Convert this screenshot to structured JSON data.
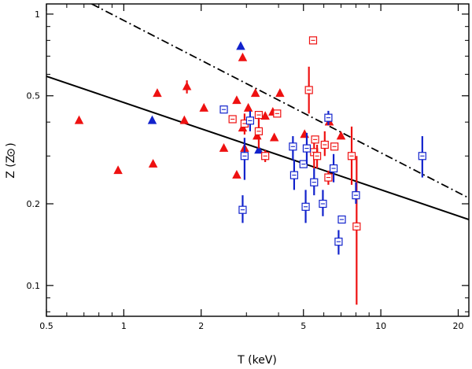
{
  "chart_data": {
    "type": "scatter",
    "title": "",
    "xlabel": "T (keV)",
    "ylabel_prefix": "Z (Z",
    "ylabel_suffix": ")",
    "x_scale": "log",
    "y_scale": "log",
    "xlim": [
      0.5,
      22
    ],
    "ylim": [
      0.077,
      1.09
    ],
    "x_ticks": [
      {
        "value": 0.5,
        "label": "0.5"
      },
      {
        "value": 1,
        "label": "1"
      },
      {
        "value": 2,
        "label": "2"
      },
      {
        "value": 5,
        "label": "5"
      },
      {
        "value": 10,
        "label": "10"
      },
      {
        "value": 20,
        "label": "20"
      }
    ],
    "y_ticks": [
      {
        "value": 0.1,
        "label": "0.1"
      },
      {
        "value": 0.2,
        "label": "0.2"
      },
      {
        "value": 0.5,
        "label": "0.5"
      },
      {
        "value": 1,
        "label": "1"
      }
    ],
    "colors": {
      "red": "#ee1111",
      "blue": "#1122cc",
      "axis": "#000000"
    },
    "lines": [
      {
        "name": "solid-fit",
        "style": "solid",
        "points": [
          [
            0.5,
            0.59
          ],
          [
            22,
            0.175
          ]
        ]
      },
      {
        "name": "dashdot-fit",
        "style": "dashdot",
        "points": [
          [
            0.75,
            1.09
          ],
          [
            22,
            0.21
          ]
        ]
      }
    ],
    "series": [
      {
        "name": "red-triangles",
        "color": "red",
        "marker": "triangle",
        "points": [
          {
            "x": 0.67,
            "y": 0.405
          },
          {
            "x": 0.95,
            "y": 0.265
          },
          {
            "x": 1.3,
            "y": 0.28
          },
          {
            "x": 1.35,
            "y": 0.51
          },
          {
            "x": 1.72,
            "y": 0.405
          },
          {
            "x": 1.76,
            "y": 0.54,
            "ylo": 0.51,
            "yhi": 0.57
          },
          {
            "x": 2.05,
            "y": 0.45
          },
          {
            "x": 2.45,
            "y": 0.32
          },
          {
            "x": 2.75,
            "y": 0.255
          },
          {
            "x": 2.75,
            "y": 0.48
          },
          {
            "x": 2.9,
            "y": 0.69
          },
          {
            "x": 2.9,
            "y": 0.38
          },
          {
            "x": 2.95,
            "y": 0.32
          },
          {
            "x": 3.05,
            "y": 0.45
          },
          {
            "x": 3.25,
            "y": 0.51
          },
          {
            "x": 3.3,
            "y": 0.355
          },
          {
            "x": 3.55,
            "y": 0.42
          },
          {
            "x": 3.8,
            "y": 0.435
          },
          {
            "x": 3.85,
            "y": 0.35
          },
          {
            "x": 4.05,
            "y": 0.51
          },
          {
            "x": 5.05,
            "y": 0.36
          },
          {
            "x": 6.3,
            "y": 0.4
          },
          {
            "x": 7.0,
            "y": 0.355
          }
        ]
      },
      {
        "name": "blue-triangles",
        "color": "blue",
        "marker": "triangle",
        "points": [
          {
            "x": 1.29,
            "y": 0.405
          },
          {
            "x": 2.85,
            "y": 0.76
          },
          {
            "x": 3.35,
            "y": 0.315
          }
        ]
      },
      {
        "name": "red-squares",
        "color": "red",
        "marker": "square",
        "points": [
          {
            "x": 2.65,
            "y": 0.41
          },
          {
            "x": 2.95,
            "y": 0.395,
            "ylo": 0.36,
            "yhi": 0.43
          },
          {
            "x": 3.35,
            "y": 0.425
          },
          {
            "x": 3.35,
            "y": 0.37,
            "ylo": 0.32,
            "yhi": 0.415
          },
          {
            "x": 3.55,
            "y": 0.3,
            "ylo": 0.285,
            "yhi": 0.315
          },
          {
            "x": 3.95,
            "y": 0.43
          },
          {
            "x": 5.25,
            "y": 0.525,
            "ylo": 0.43,
            "yhi": 0.64
          },
          {
            "x": 5.45,
            "y": 0.8
          },
          {
            "x": 5.5,
            "y": 0.31,
            "ylo": 0.27,
            "yhi": 0.35
          },
          {
            "x": 5.55,
            "y": 0.345
          },
          {
            "x": 5.65,
            "y": 0.3,
            "ylo": 0.27,
            "yhi": 0.33
          },
          {
            "x": 6.05,
            "y": 0.33,
            "ylo": 0.3,
            "yhi": 0.37
          },
          {
            "x": 6.25,
            "y": 0.25,
            "ylo": 0.235,
            "yhi": 0.265
          },
          {
            "x": 6.6,
            "y": 0.325
          },
          {
            "x": 7.7,
            "y": 0.3,
            "ylo": 0.235,
            "yhi": 0.385
          },
          {
            "x": 8.05,
            "y": 0.165,
            "ylo": 0.085,
            "yhi": 0.3
          }
        ]
      },
      {
        "name": "blue-squares",
        "color": "blue",
        "marker": "square",
        "points": [
          {
            "x": 2.45,
            "y": 0.445
          },
          {
            "x": 2.9,
            "y": 0.19,
            "ylo": 0.17,
            "yhi": 0.215
          },
          {
            "x": 2.95,
            "y": 0.3,
            "ylo": 0.245,
            "yhi": 0.35
          },
          {
            "x": 3.1,
            "y": 0.405,
            "ylo": 0.37,
            "yhi": 0.44
          },
          {
            "x": 4.55,
            "y": 0.325,
            "ylo": 0.29,
            "yhi": 0.355
          },
          {
            "x": 4.6,
            "y": 0.255,
            "ylo": 0.225,
            "yhi": 0.29
          },
          {
            "x": 5.0,
            "y": 0.28
          },
          {
            "x": 5.1,
            "y": 0.195,
            "ylo": 0.17,
            "yhi": 0.225
          },
          {
            "x": 5.15,
            "y": 0.32,
            "ylo": 0.28,
            "yhi": 0.365
          },
          {
            "x": 5.5,
            "y": 0.24,
            "ylo": 0.215,
            "yhi": 0.27
          },
          {
            "x": 5.95,
            "y": 0.2,
            "ylo": 0.18,
            "yhi": 0.225
          },
          {
            "x": 6.25,
            "y": 0.415,
            "ylo": 0.39,
            "yhi": 0.44
          },
          {
            "x": 6.55,
            "y": 0.27,
            "ylo": 0.24,
            "yhi": 0.305
          },
          {
            "x": 6.85,
            "y": 0.145,
            "ylo": 0.13,
            "yhi": 0.16
          },
          {
            "x": 7.05,
            "y": 0.175
          },
          {
            "x": 8.0,
            "y": 0.215,
            "ylo": 0.2,
            "yhi": 0.24
          },
          {
            "x": 14.5,
            "y": 0.3,
            "ylo": 0.25,
            "yhi": 0.355
          }
        ]
      }
    ]
  }
}
